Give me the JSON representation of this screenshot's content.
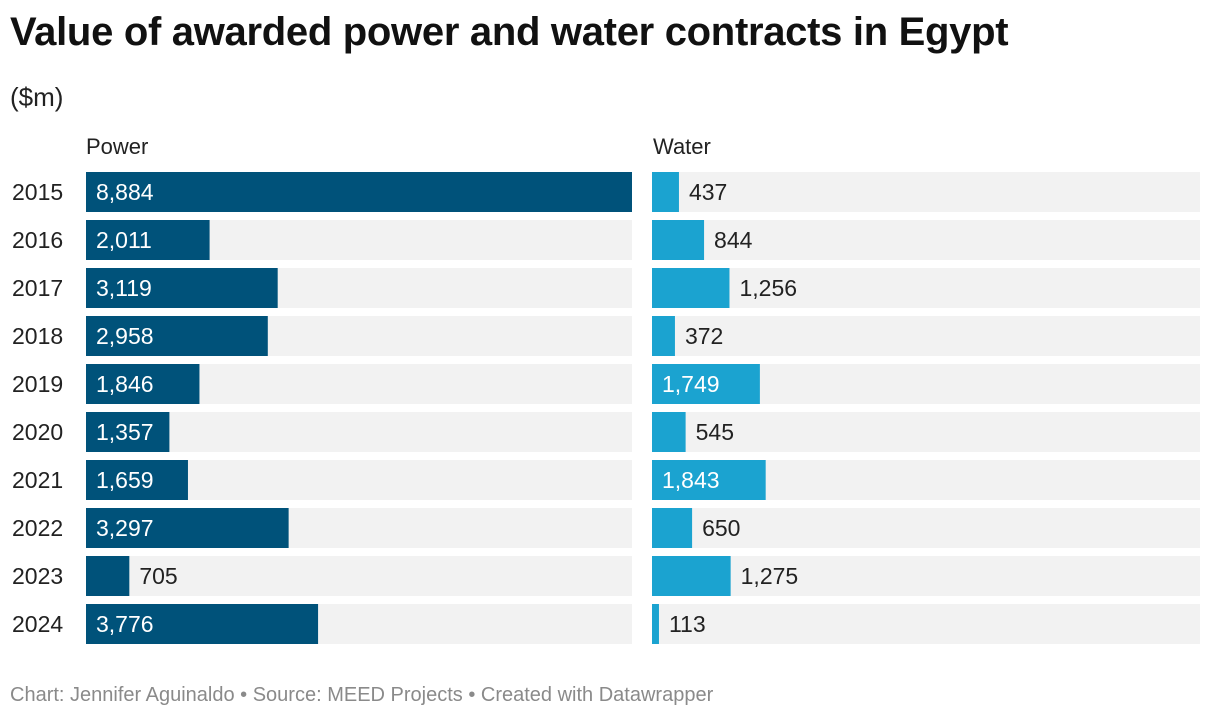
{
  "header": {
    "title": "Value of awarded power and water contracts in Egypt",
    "subtitle": "($m)"
  },
  "footer": {
    "text": "Chart: Jennifer Aguinaldo • Source: MEED Projects • Created with Datawrapper"
  },
  "colors": {
    "power": "#00527a",
    "water": "#1ba3d0",
    "track": "#f2f2f2",
    "label_inside": "#ffffff",
    "label_outside": "#222222"
  },
  "chart_data": {
    "type": "bar",
    "orientation": "horizontal",
    "title": "Value of awarded power and water contracts in Egypt",
    "subtitle": "($m)",
    "categories": [
      "2015",
      "2016",
      "2017",
      "2018",
      "2019",
      "2020",
      "2021",
      "2022",
      "2023",
      "2024"
    ],
    "series": [
      {
        "name": "Power",
        "values": [
          8884,
          2011,
          3119,
          2958,
          1846,
          1357,
          1659,
          3297,
          705,
          3776
        ],
        "labels": [
          "8,884",
          "2,011",
          "3,119",
          "2,958",
          "1,846",
          "1,357",
          "1,659",
          "3,297",
          "705",
          "3,776"
        ],
        "xlim": [
          0,
          8884
        ]
      },
      {
        "name": "Water",
        "values": [
          437,
          844,
          1256,
          372,
          1749,
          545,
          1843,
          650,
          1275,
          113
        ],
        "labels": [
          "437",
          "844",
          "1,256",
          "372",
          "1,749",
          "545",
          "1,843",
          "650",
          "1,275",
          "113"
        ],
        "xlim": [
          0,
          8884
        ]
      }
    ],
    "grid": false,
    "legend": "none"
  }
}
